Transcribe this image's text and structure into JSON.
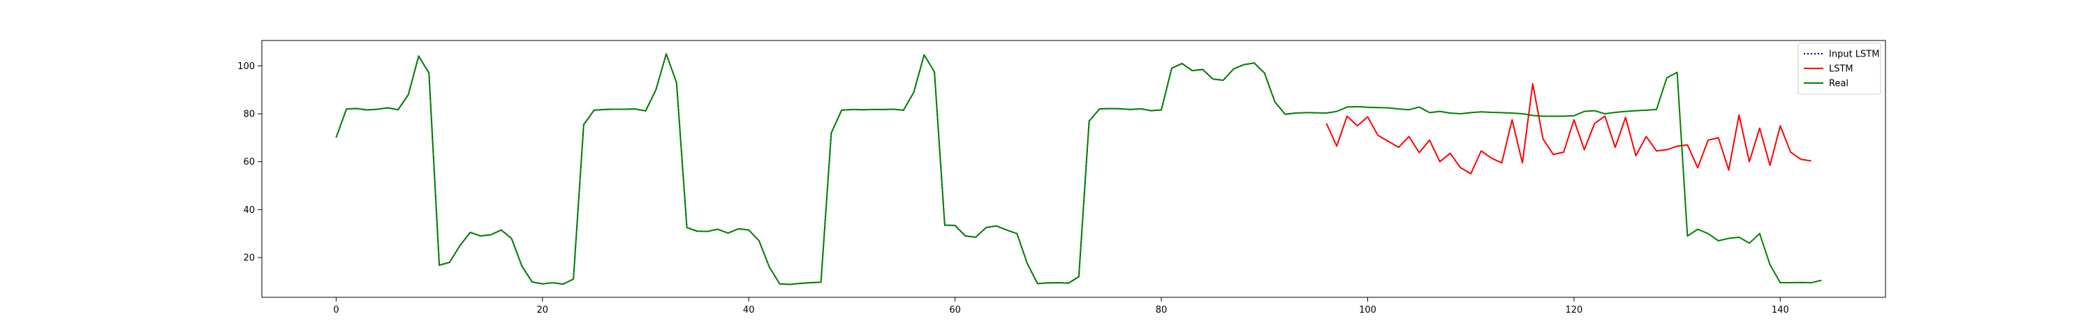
{
  "chart_data": {
    "type": "line",
    "title": "",
    "xlabel": "",
    "ylabel": "",
    "xlim": [
      -7.2,
      150.2
    ],
    "ylim": [
      3.4,
      110.6
    ],
    "xticks": [
      0,
      20,
      40,
      60,
      80,
      100,
      120,
      140
    ],
    "yticks": [
      20,
      40,
      60,
      80,
      100
    ],
    "grid": false,
    "legend_position": "top-right",
    "series": [
      {
        "name": "Input LSTM",
        "color": "#00008b",
        "style": "dotted",
        "x_start": 0,
        "values": [
          70.1,
          82.0,
          82.2,
          81.6,
          81.9,
          82.5,
          81.7,
          88.0,
          104.1,
          97.0,
          16.8,
          18.0,
          25.0,
          30.5,
          29.0,
          29.5,
          31.5,
          28.0,
          16.5,
          9.8,
          9.0,
          9.5,
          8.9,
          11.0,
          75.5,
          81.5,
          81.8,
          81.9,
          81.9,
          82.0,
          81.2,
          90.0,
          105.0,
          93.0,
          32.5,
          31.0,
          30.9,
          31.8,
          30.2,
          32.0,
          31.5,
          27.0,
          16.0,
          9.0,
          8.8,
          9.2,
          9.5,
          9.7,
          72.0,
          81.5,
          81.8,
          81.7,
          81.8,
          81.8,
          81.9,
          81.5,
          89.0,
          104.6,
          97.5,
          33.5,
          33.4,
          29.0,
          28.5,
          32.5,
          33.2,
          31.5,
          30.0,
          17.5,
          9.1,
          9.4,
          9.5,
          9.3,
          12.0,
          77.0,
          82.0,
          82.2,
          82.1,
          81.8,
          82.1,
          81.3,
          81.6,
          99.0,
          101.0,
          98.0,
          98.5,
          94.5,
          94.0,
          98.7,
          100.5,
          101.2,
          97.0,
          85.0,
          79.8,
          80.3
        ]
      },
      {
        "name": "LSTM",
        "color": "#ff0000",
        "style": "solid",
        "x_start": 96,
        "values": [
          76.0,
          66.5,
          79.0,
          75.0,
          78.7,
          71.0,
          68.5,
          66.0,
          70.5,
          63.8,
          69.0,
          60.0,
          63.5,
          57.5,
          55.0,
          64.5,
          61.5,
          59.5,
          77.5,
          59.5,
          92.5,
          69.5,
          63.0,
          64.0,
          77.5,
          65.0,
          76.0,
          79.0,
          66.0,
          78.5,
          62.5,
          70.5,
          64.5,
          65.0,
          66.5,
          67.0,
          57.5,
          69.0,
          70.0,
          56.5,
          79.5,
          60.0,
          74.0,
          58.5,
          75.0,
          64.0,
          61.0,
          60.3
        ]
      },
      {
        "name": "Real",
        "color": "#008000",
        "style": "solid",
        "x_start": 0,
        "values": [
          70.1,
          82.0,
          82.2,
          81.6,
          81.9,
          82.5,
          81.7,
          88.0,
          104.1,
          97.0,
          16.8,
          18.0,
          25.0,
          30.5,
          29.0,
          29.5,
          31.5,
          28.0,
          16.5,
          9.8,
          9.0,
          9.5,
          8.9,
          11.0,
          75.5,
          81.5,
          81.8,
          81.9,
          81.9,
          82.0,
          81.2,
          90.0,
          105.0,
          93.0,
          32.5,
          31.0,
          30.9,
          31.8,
          30.2,
          32.0,
          31.5,
          27.0,
          16.0,
          9.0,
          8.8,
          9.2,
          9.5,
          9.7,
          72.0,
          81.5,
          81.8,
          81.7,
          81.8,
          81.8,
          81.9,
          81.5,
          89.0,
          104.6,
          97.5,
          33.5,
          33.4,
          29.0,
          28.5,
          32.5,
          33.2,
          31.5,
          30.0,
          17.5,
          9.1,
          9.4,
          9.5,
          9.3,
          12.0,
          77.0,
          82.0,
          82.2,
          82.1,
          81.8,
          82.1,
          81.3,
          81.6,
          99.0,
          101.0,
          98.0,
          98.5,
          94.5,
          94.0,
          98.7,
          100.5,
          101.2,
          97.0,
          85.0,
          79.8,
          80.3,
          80.5,
          80.4,
          80.3,
          81.0,
          82.8,
          83.0,
          82.7,
          82.6,
          82.5,
          82.0,
          81.7,
          82.8,
          80.5,
          81.0,
          80.3,
          80.0,
          80.5,
          80.8,
          80.6,
          80.5,
          80.3,
          80.0,
          79.3,
          79.0,
          79.0,
          79.0,
          79.2,
          81.0,
          81.3,
          80.0,
          80.6,
          81.0,
          81.3,
          81.5,
          81.8,
          95.0,
          97.3,
          29.0,
          31.8,
          30.0,
          27.0,
          28.0,
          28.5,
          26.0,
          30.0,
          17.0,
          9.5,
          9.5,
          9.6,
          9.5,
          10.5
        ]
      }
    ]
  }
}
